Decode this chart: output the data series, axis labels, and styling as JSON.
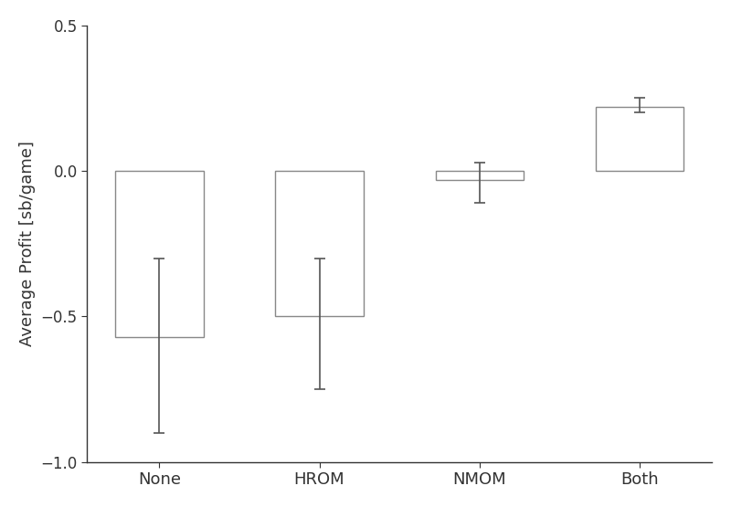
{
  "categories": [
    "None",
    "HROM",
    "NMOM",
    "Both"
  ],
  "values": [
    -0.57,
    -0.5,
    -0.03,
    0.22
  ],
  "errors_upper": [
    0.27,
    0.2,
    0.06,
    0.03
  ],
  "errors_lower": [
    0.33,
    0.25,
    0.08,
    0.02
  ],
  "ylabel": "Average Profit [sb/game]",
  "ylim": [
    -1.0,
    0.5
  ],
  "yticks": [
    -1.0,
    -0.5,
    0.0,
    0.5
  ],
  "bar_color": "#ffffff",
  "bar_edgecolor": "#888888",
  "ecolor": "#555555",
  "bar_width": 0.55,
  "background_color": "#ffffff",
  "spine_color": "#333333",
  "tick_label_fontsize": 13,
  "ylabel_fontsize": 13
}
